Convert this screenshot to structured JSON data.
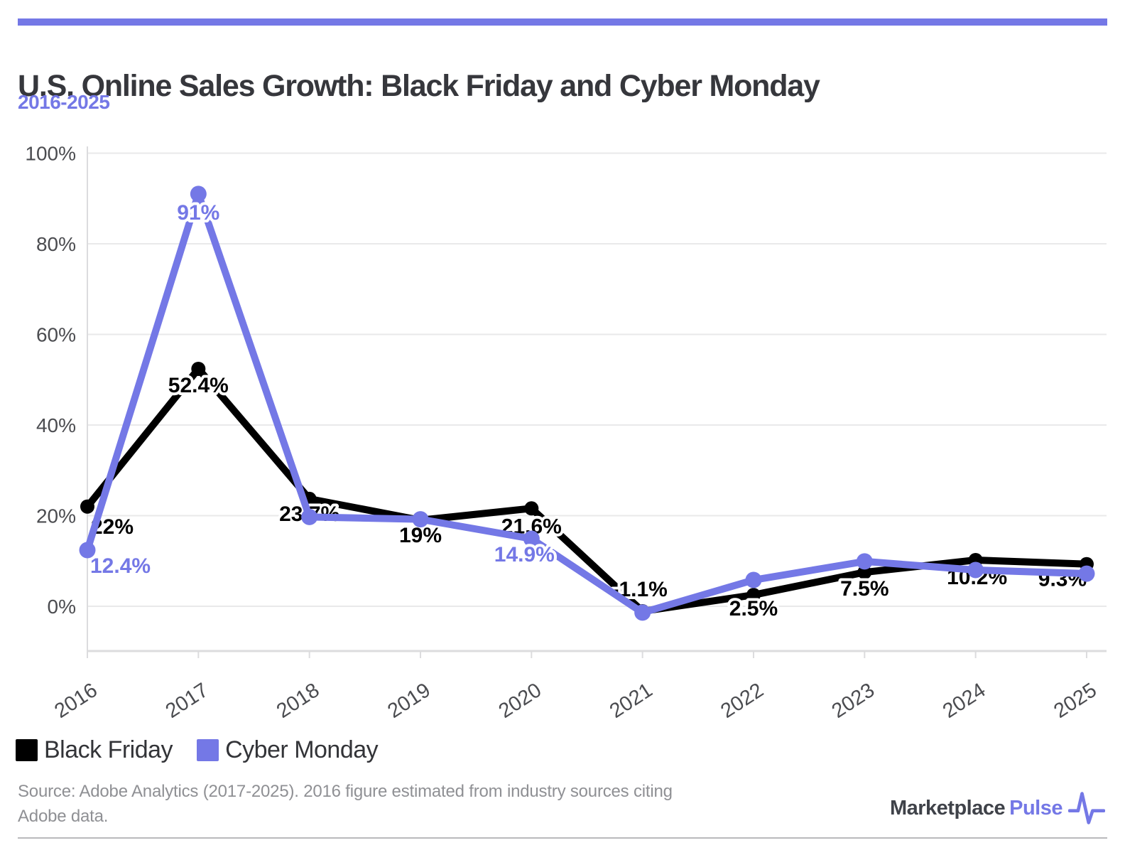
{
  "page": {
    "accent_color": "#7478e6",
    "background": "#ffffff"
  },
  "header": {
    "title": "U.S. Online Sales Growth: Black Friday and Cyber Monday",
    "subtitle": "2016-2025"
  },
  "chart_data": {
    "type": "line",
    "title": "U.S. Online Sales Growth: Black Friday and Cyber Monday",
    "subtitle": "2016-2025",
    "x": [
      "2016",
      "2017",
      "2018",
      "2019",
      "2020",
      "2021",
      "2022",
      "2023",
      "2024",
      "2025"
    ],
    "xlabel": "",
    "ylabel": "",
    "ylim": [
      -10,
      100
    ],
    "yticks": {
      "values": [
        0,
        20,
        40,
        60,
        80,
        100
      ],
      "labels": [
        "0%",
        "20%",
        "40%",
        "60%",
        "80%",
        "100%"
      ]
    },
    "grid": true,
    "legend_position": "bottom-left",
    "series": [
      {
        "name": "Black Friday",
        "color": "#000000",
        "values": [
          22,
          52.4,
          23.7,
          19,
          21.6,
          -1.1,
          2.5,
          7.5,
          10.2,
          9.3
        ],
        "point_labels": [
          "22%",
          "52.4%",
          "23.7%",
          "19%",
          "21.6%",
          "-1.1%",
          "2.5%",
          "7.5%",
          "10.2%",
          "9.3%"
        ]
      },
      {
        "name": "Cyber Monday",
        "color": "#7478e6",
        "values": [
          12.4,
          91,
          19.7,
          19.2,
          14.9,
          -1.4,
          5.8,
          9.9,
          8.0,
          7.2
        ],
        "point_labels": [
          "12.4%",
          "91%",
          "",
          "",
          "14.9%",
          "",
          "",
          "",
          "",
          ""
        ]
      }
    ]
  },
  "legend": {
    "items": [
      {
        "label": "Black Friday",
        "color": "#000000"
      },
      {
        "label": "Cyber Monday",
        "color": "#7478e6"
      }
    ]
  },
  "footer": {
    "source_lines": [
      "Source: Adobe Analytics (2017-2025). 2016 figure estimated from industry sources citing",
      "Adobe data."
    ],
    "brand": {
      "name_part1": "Marketplace",
      "name_part2": "Pulse"
    }
  }
}
